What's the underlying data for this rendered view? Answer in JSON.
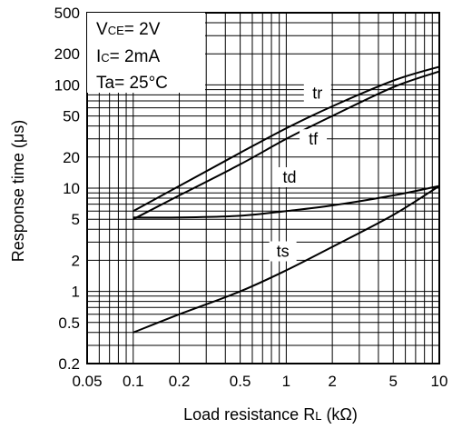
{
  "chart_data": {
    "type": "line",
    "xlabel": "Load resistance R",
    "xlabel_sub": "L",
    "xlabel_unit": " (kΩ)",
    "ylabel": "Response time (μs)",
    "xscale": "log",
    "yscale": "log",
    "xlim": [
      0.05,
      10
    ],
    "ylim": [
      0.2,
      500
    ],
    "x_ticks": [
      {
        "value": 0.05,
        "label": "0.05"
      },
      {
        "value": 0.1,
        "label": "0.1"
      },
      {
        "value": 0.2,
        "label": "0.2"
      },
      {
        "value": 0.5,
        "label": "0.5"
      },
      {
        "value": 1,
        "label": "1"
      },
      {
        "value": 2,
        "label": "2"
      },
      {
        "value": 5,
        "label": "5"
      },
      {
        "value": 10,
        "label": "10"
      }
    ],
    "y_ticks": [
      {
        "value": 0.2,
        "label": "0.2"
      },
      {
        "value": 0.5,
        "label": "0.5"
      },
      {
        "value": 1,
        "label": "1"
      },
      {
        "value": 2,
        "label": "2"
      },
      {
        "value": 5,
        "label": "5"
      },
      {
        "value": 10,
        "label": "10"
      },
      {
        "value": 20,
        "label": "20"
      },
      {
        "value": 50,
        "label": "50"
      },
      {
        "value": 100,
        "label": "100"
      },
      {
        "value": 200,
        "label": "200"
      },
      {
        "value": 500,
        "label": "500"
      }
    ],
    "grid": true,
    "conditions": {
      "line1_prefix": "V",
      "line1_sub": "CE",
      "line1_value": "= 2V",
      "line2_prefix": "I",
      "line2_sub": "C",
      "line2_value": "= 2mA",
      "line3": "Ta= 25°C"
    },
    "series": [
      {
        "name": "tr",
        "x": [
          0.1,
          0.2,
          0.5,
          1,
          2,
          5,
          10
        ],
        "y": [
          6,
          10.5,
          22,
          38,
          62,
          110,
          150
        ],
        "label_at": [
          1.6,
          78
        ]
      },
      {
        "name": "tf",
        "x": [
          0.1,
          0.2,
          0.5,
          1,
          2,
          5,
          10
        ],
        "y": [
          5,
          8.5,
          17,
          30,
          50,
          95,
          135
        ],
        "label_at": [
          1.5,
          28
        ]
      },
      {
        "name": "td",
        "x": [
          0.1,
          0.2,
          0.5,
          1,
          2,
          5,
          10
        ],
        "y": [
          5.2,
          5.2,
          5.4,
          6,
          6.8,
          8.5,
          10.5
        ],
        "label_at": [
          1.05,
          12
        ]
      },
      {
        "name": "ts",
        "x": [
          0.1,
          0.2,
          0.5,
          1,
          2,
          5,
          10
        ],
        "y": [
          0.4,
          0.6,
          1.0,
          1.6,
          2.7,
          5.5,
          10.5
        ],
        "label_at": [
          0.95,
          2.3
        ]
      }
    ]
  }
}
